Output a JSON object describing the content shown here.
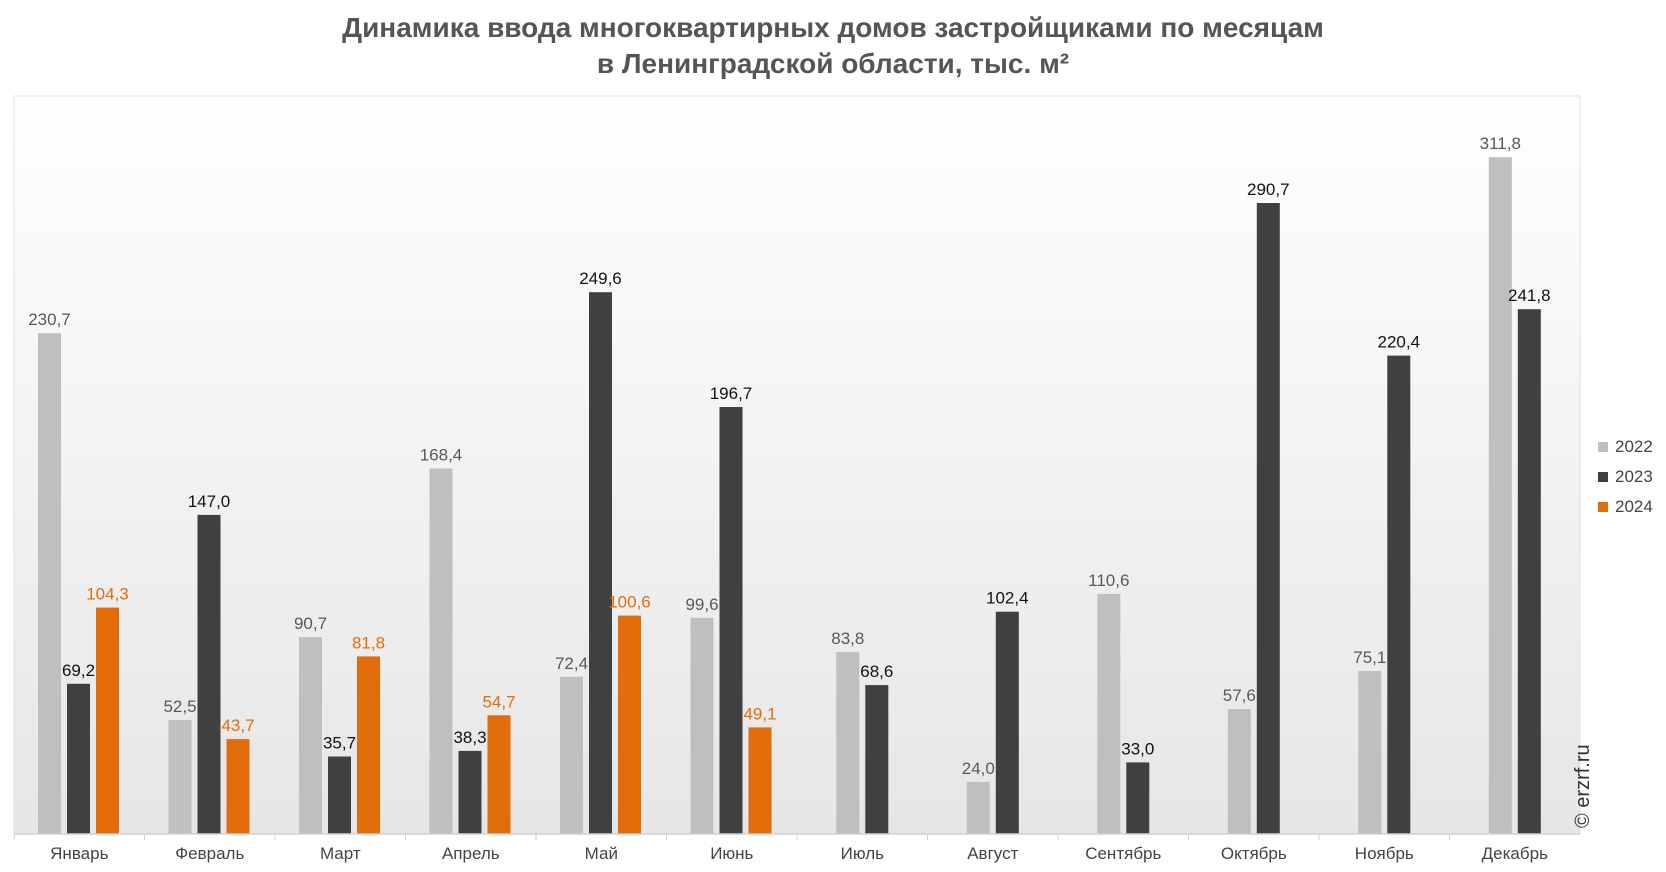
{
  "title_lines": [
    "Динамика ввода многоквартирных домов застройщиками по месяцам",
    "в Ленинградской области, тыс. м²"
  ],
  "credit": "© erzrf.ru",
  "chart_data": {
    "type": "bar",
    "categories": [
      "Январь",
      "Февраль",
      "Март",
      "Апрель",
      "Май",
      "Июнь",
      "Июль",
      "Август",
      "Сентябрь",
      "Октябрь",
      "Ноябрь",
      "Декабрь"
    ],
    "series": [
      {
        "name": "2022",
        "color": "#bfbfbf",
        "label_color": "#595959",
        "values": [
          230.7,
          52.5,
          90.7,
          168.4,
          72.4,
          99.6,
          83.8,
          24.0,
          110.6,
          57.6,
          75.1,
          311.8
        ],
        "labels": [
          "230,7",
          "52,5",
          "90,7",
          "168,4",
          "72,4",
          "99,6",
          "83,8",
          "24,0",
          "110,6",
          "57,6",
          "75,1",
          "311,8"
        ]
      },
      {
        "name": "2023",
        "color": "#404040",
        "label_color": "#111111",
        "values": [
          69.2,
          147.0,
          35.7,
          38.3,
          249.6,
          196.7,
          68.6,
          102.4,
          33.0,
          290.7,
          220.4,
          241.8
        ],
        "labels": [
          "69,2",
          "147,0",
          "35,7",
          "38,3",
          "249,6",
          "196,7",
          "68,6",
          "102,4",
          "33,0",
          "290,7",
          "220,4",
          "241,8"
        ]
      },
      {
        "name": "2024",
        "color": "#e36c0a",
        "label_color": "#e36c0a",
        "values": [
          104.3,
          43.7,
          81.8,
          54.7,
          100.6,
          49.1,
          null,
          null,
          null,
          null,
          null,
          null
        ],
        "labels": [
          "104,3",
          "43,7",
          "81,8",
          "54,7",
          "100,6",
          "49,1",
          "",
          "",
          "",
          "",
          "",
          ""
        ]
      }
    ],
    "ylim": [
      0,
      340
    ],
    "grid": false,
    "legend_position": "right",
    "background": "vertical gradient white to light gray"
  }
}
